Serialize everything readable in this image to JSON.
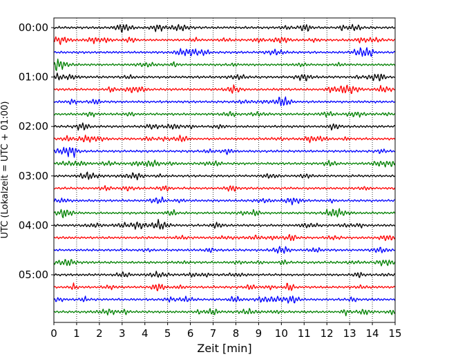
{
  "chart_data": {
    "type": "line",
    "title": "",
    "xlabel": "Zeit  [min]",
    "ylabel": "UTC (Lokalzeit = UTC + 01:00)",
    "xlim": [
      0,
      15
    ],
    "x_ticks": [
      "0",
      "1",
      "2",
      "3",
      "4",
      "5",
      "6",
      "7",
      "8",
      "9",
      "10",
      "11",
      "12",
      "13",
      "14",
      "15"
    ],
    "y_ticks": [
      "00:00",
      "01:00",
      "02:00",
      "03:00",
      "04:00",
      "05:00"
    ],
    "grid": "vertical dotted",
    "trace_interval_minutes": 15,
    "trace_count": 24,
    "trace_colors": [
      "#000000",
      "#ff0000",
      "#0000ff",
      "#008000"
    ],
    "series": [
      {
        "start": "00:00",
        "color": "#000000"
      },
      {
        "start": "00:15",
        "color": "#ff0000"
      },
      {
        "start": "00:30",
        "color": "#0000ff"
      },
      {
        "start": "00:45",
        "color": "#008000"
      },
      {
        "start": "01:00",
        "color": "#000000"
      },
      {
        "start": "01:15",
        "color": "#ff0000"
      },
      {
        "start": "01:30",
        "color": "#0000ff"
      },
      {
        "start": "01:45",
        "color": "#008000"
      },
      {
        "start": "02:00",
        "color": "#000000"
      },
      {
        "start": "02:15",
        "color": "#ff0000"
      },
      {
        "start": "02:30",
        "color": "#0000ff"
      },
      {
        "start": "02:45",
        "color": "#008000"
      },
      {
        "start": "03:00",
        "color": "#000000"
      },
      {
        "start": "03:15",
        "color": "#ff0000"
      },
      {
        "start": "03:30",
        "color": "#0000ff"
      },
      {
        "start": "03:45",
        "color": "#008000"
      },
      {
        "start": "04:00",
        "color": "#000000"
      },
      {
        "start": "04:15",
        "color": "#ff0000"
      },
      {
        "start": "04:30",
        "color": "#0000ff"
      },
      {
        "start": "04:45",
        "color": "#008000"
      },
      {
        "start": "05:00",
        "color": "#000000"
      },
      {
        "start": "05:15",
        "color": "#ff0000"
      },
      {
        "start": "05:30",
        "color": "#0000ff"
      },
      {
        "start": "05:45",
        "color": "#008000"
      }
    ]
  }
}
